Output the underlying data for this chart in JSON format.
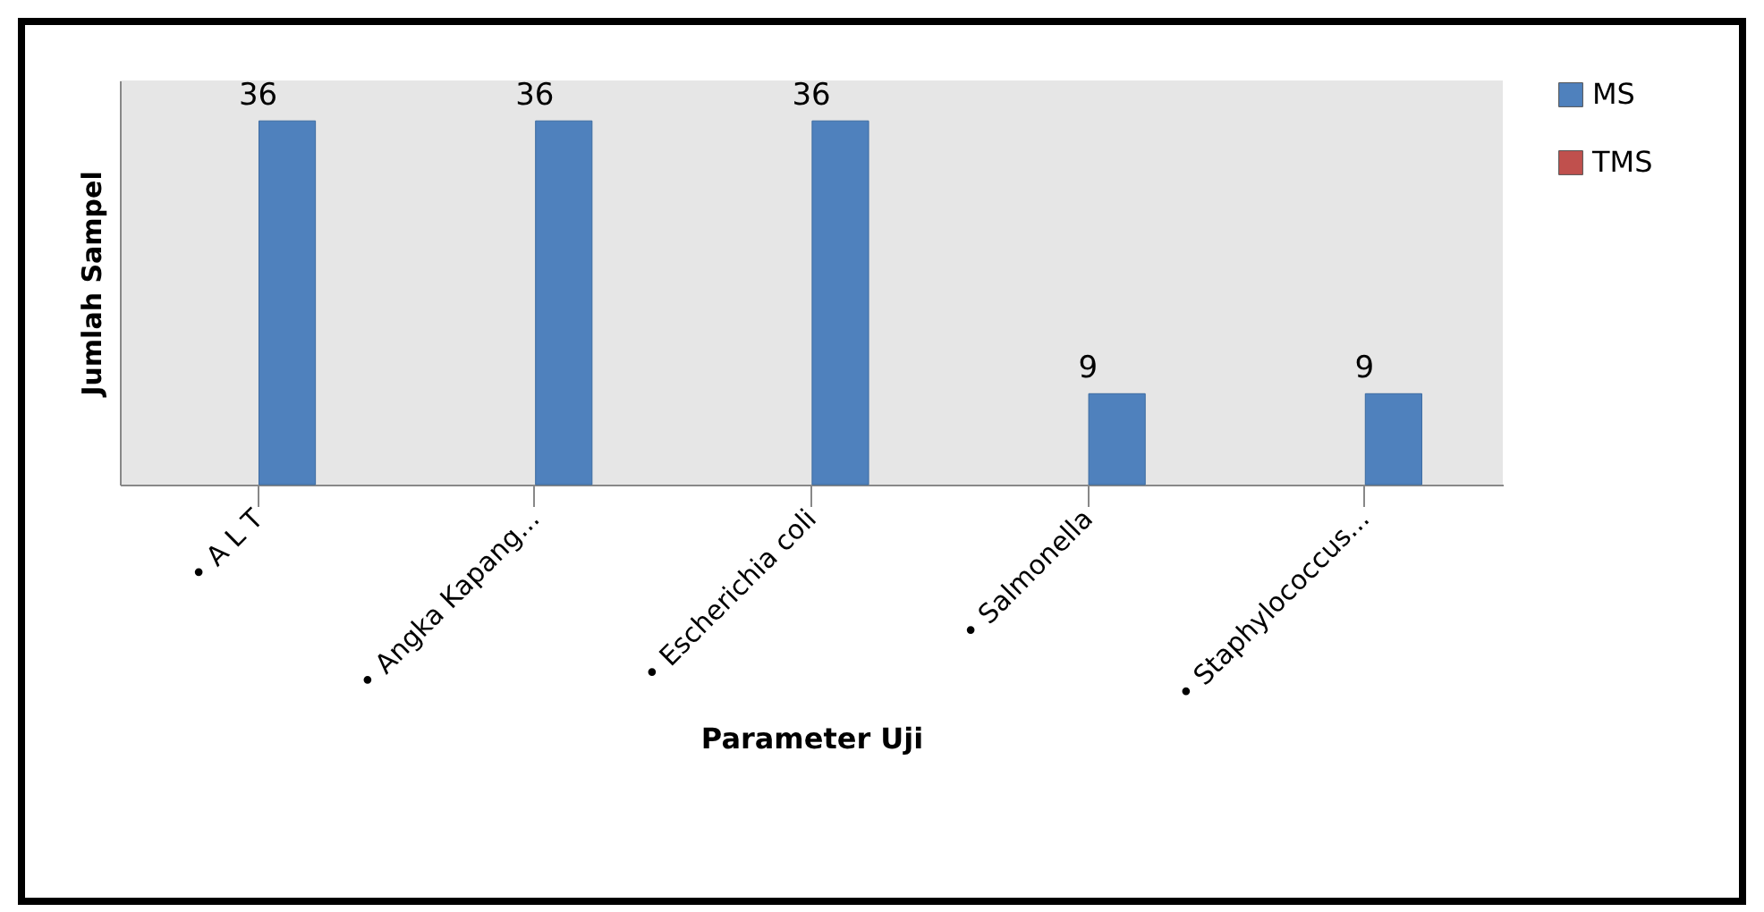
{
  "chart_data": {
    "type": "bar",
    "xlabel": "Parameter Uji",
    "ylabel": "Jumlah Sampel",
    "categories": [
      "• A L T",
      "• Angka Kapang...",
      "• Escherichia coli",
      "• Salmonella",
      "• Staphylococcus..."
    ],
    "series": [
      {
        "name": "MS",
        "color": "#4f81bd",
        "values": [
          36,
          36,
          36,
          9,
          9
        ]
      },
      {
        "name": "TMS",
        "color": "#c0504d",
        "values": [
          null,
          null,
          null,
          null,
          null
        ]
      }
    ],
    "data_labels": true,
    "legend": "right",
    "grid": false
  }
}
